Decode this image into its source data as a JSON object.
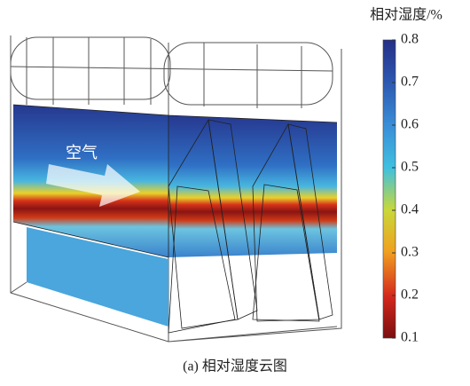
{
  "figure": {
    "annotation": "空气",
    "caption": "(a) 相对湿度云图",
    "colorbar": {
      "title": "相对湿度/%",
      "lim": [
        0.1,
        0.8
      ],
      "ticks": [
        0.1,
        0.2,
        0.3,
        0.4,
        0.5,
        0.6,
        0.7,
        0.8
      ]
    }
  }
}
